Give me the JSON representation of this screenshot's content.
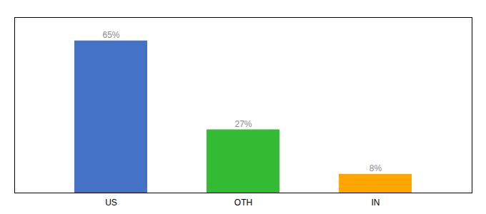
{
  "chart_data": {
    "type": "bar",
    "categories": [
      "US",
      "OTH",
      "IN"
    ],
    "values": [
      65,
      27,
      8
    ],
    "value_labels": [
      "65%",
      "27%",
      "8%"
    ],
    "colors": [
      "#4472C4",
      "#33BB33",
      "#FFA500"
    ],
    "ylim": [
      0,
      75
    ],
    "data_labels": true,
    "tick_labels": "x",
    "grid": false
  }
}
